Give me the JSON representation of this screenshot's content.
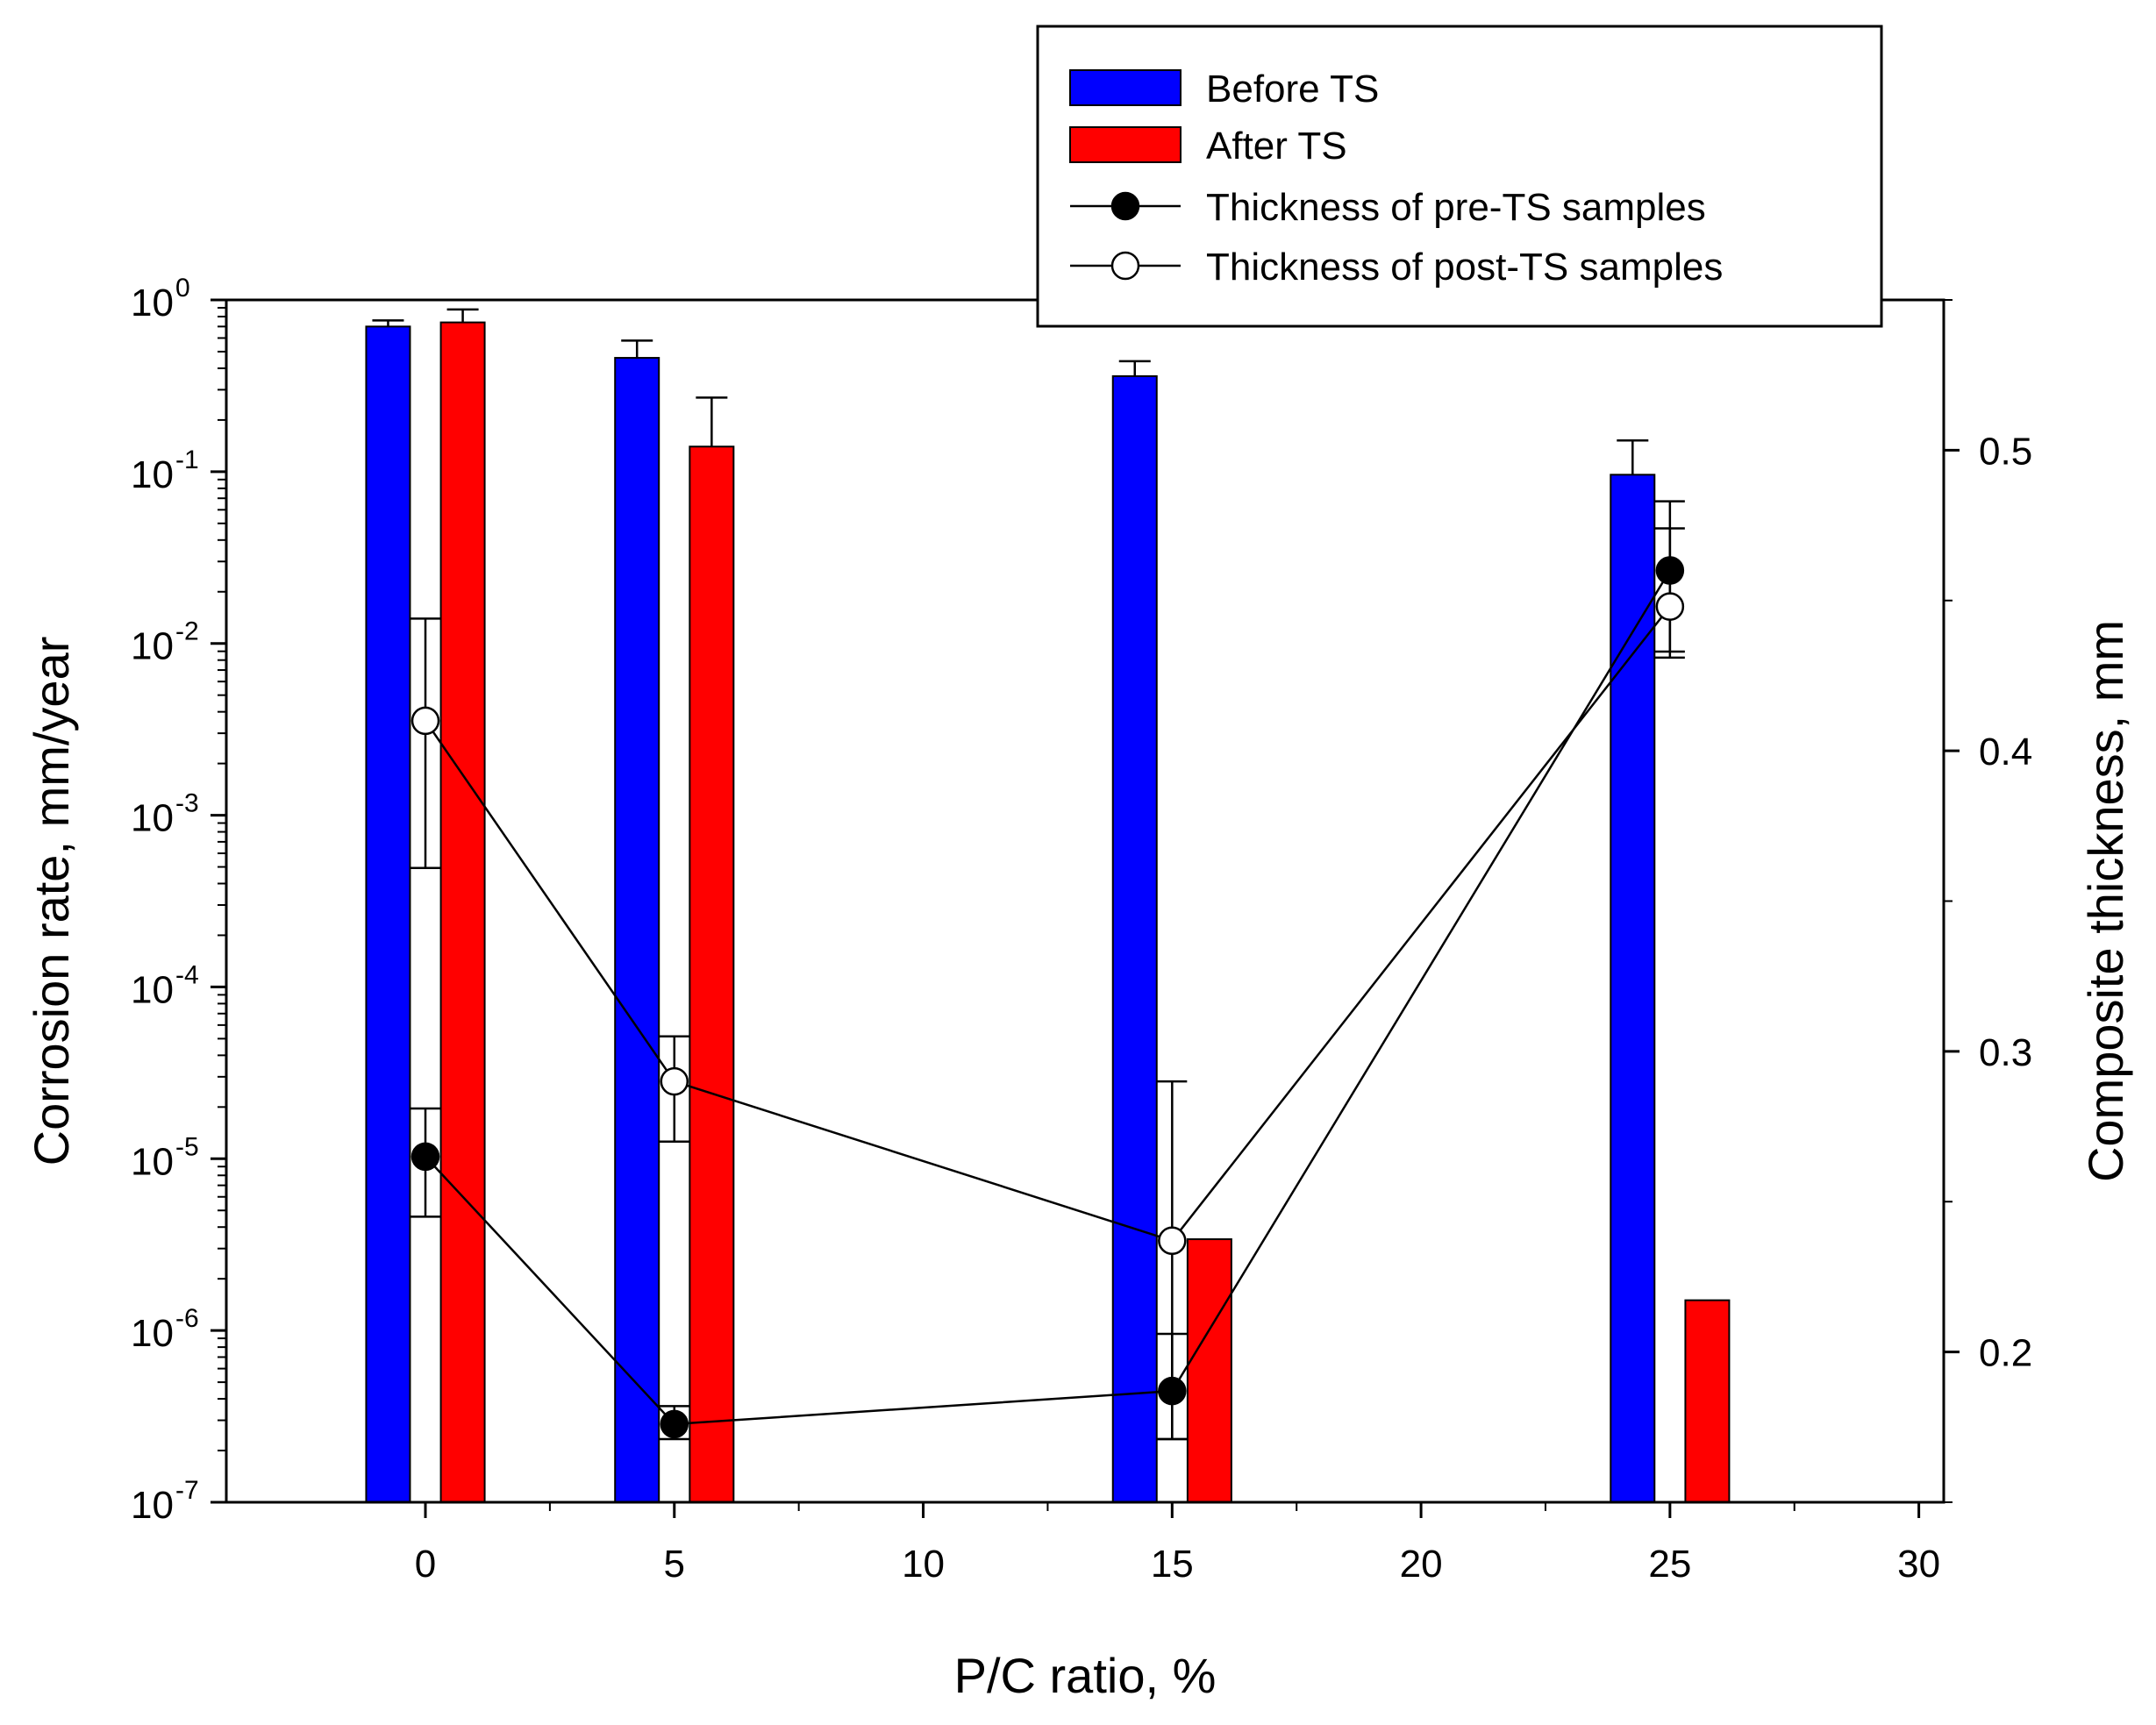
{
  "chart_data": {
    "type": "bar",
    "x_label": "P/C ratio, %",
    "y_label_left": "Corrosion rate, mm/year",
    "y_label_right": "Composite thickness, mm",
    "x_range": [
      -4,
      30.5
    ],
    "x_ticks": [
      0,
      5,
      10,
      15,
      20,
      25,
      30
    ],
    "y_left_scale": "log",
    "y_left_range": [
      1e-07,
      1
    ],
    "y_left_ticks": [
      {
        "base": "10",
        "exp": "0",
        "value": 1
      },
      {
        "base": "10",
        "exp": "-1",
        "value": 0.1
      },
      {
        "base": "10",
        "exp": "-2",
        "value": 0.01
      },
      {
        "base": "10",
        "exp": "-3",
        "value": 0.001
      },
      {
        "base": "10",
        "exp": "-4",
        "value": 0.0001
      },
      {
        "base": "10",
        "exp": "-5",
        "value": 1e-05
      },
      {
        "base": "10",
        "exp": "-6",
        "value": 1e-06
      },
      {
        "base": "10",
        "exp": "-7",
        "value": 1e-07
      }
    ],
    "y_right_range": [
      0.15,
      0.55
    ],
    "y_right_ticks": [
      {
        "value": 0.2,
        "label": "0.2"
      },
      {
        "value": 0.3,
        "label": "0.3"
      },
      {
        "value": 0.4,
        "label": "0.4"
      },
      {
        "value": 0.5,
        "label": "0.5"
      }
    ],
    "bar_series": [
      {
        "name": "Before TS",
        "color": "#0000ff",
        "offset": -0.75,
        "points": [
          {
            "x": 0,
            "value": 0.7,
            "err": 0.76
          },
          {
            "x": 5,
            "value": 0.46,
            "err": 0.58
          },
          {
            "x": 15,
            "value": 0.36,
            "err": 0.44
          },
          {
            "x": 25,
            "value": 0.096,
            "err": 0.152
          }
        ]
      },
      {
        "name": "After TS",
        "color": "#ff0000",
        "offset": 0.75,
        "points": [
          {
            "x": 0,
            "value": 0.74,
            "err": 0.88
          },
          {
            "x": 5,
            "value": 0.14,
            "err": 0.27
          },
          {
            "x": 15,
            "value": 3.4e-06,
            "err": null
          },
          {
            "x": 25,
            "value": 1.5e-06,
            "err": null
          }
        ]
      }
    ],
    "line_series": [
      {
        "name": "Thickness of pre-TS samples",
        "marker": "filled",
        "points": [
          {
            "x": 0,
            "y": 0.265,
            "err_lo": 0.245,
            "err_hi": 0.281
          },
          {
            "x": 5,
            "y": 0.176,
            "err_lo": 0.171,
            "err_hi": 0.182
          },
          {
            "x": 15,
            "y": 0.187,
            "err_lo": 0.171,
            "err_hi": 0.206
          },
          {
            "x": 25,
            "y": 0.46,
            "err_lo": 0.431,
            "err_hi": 0.474
          }
        ]
      },
      {
        "name": "Thickness of post-TS samples",
        "marker": "open",
        "points": [
          {
            "x": 0,
            "y": 0.41,
            "err_lo": 0.361,
            "err_hi": 0.444
          },
          {
            "x": 5,
            "y": 0.29,
            "err_lo": 0.27,
            "err_hi": 0.305
          },
          {
            "x": 15,
            "y": 0.237,
            "err_lo": 0.171,
            "err_hi": 0.29
          },
          {
            "x": 25,
            "y": 0.448,
            "err_lo": 0.433,
            "err_hi": 0.483
          }
        ]
      }
    ],
    "legend": [
      {
        "label": "Before TS",
        "kind": "bar",
        "color": "#0000ff"
      },
      {
        "label": "After TS",
        "kind": "bar",
        "color": "#ff0000"
      },
      {
        "label": "Thickness of pre-TS samples",
        "kind": "line",
        "marker": "filled"
      },
      {
        "label": "Thickness of post-TS samples",
        "kind": "line",
        "marker": "open"
      }
    ],
    "legend_position": "top-right"
  }
}
